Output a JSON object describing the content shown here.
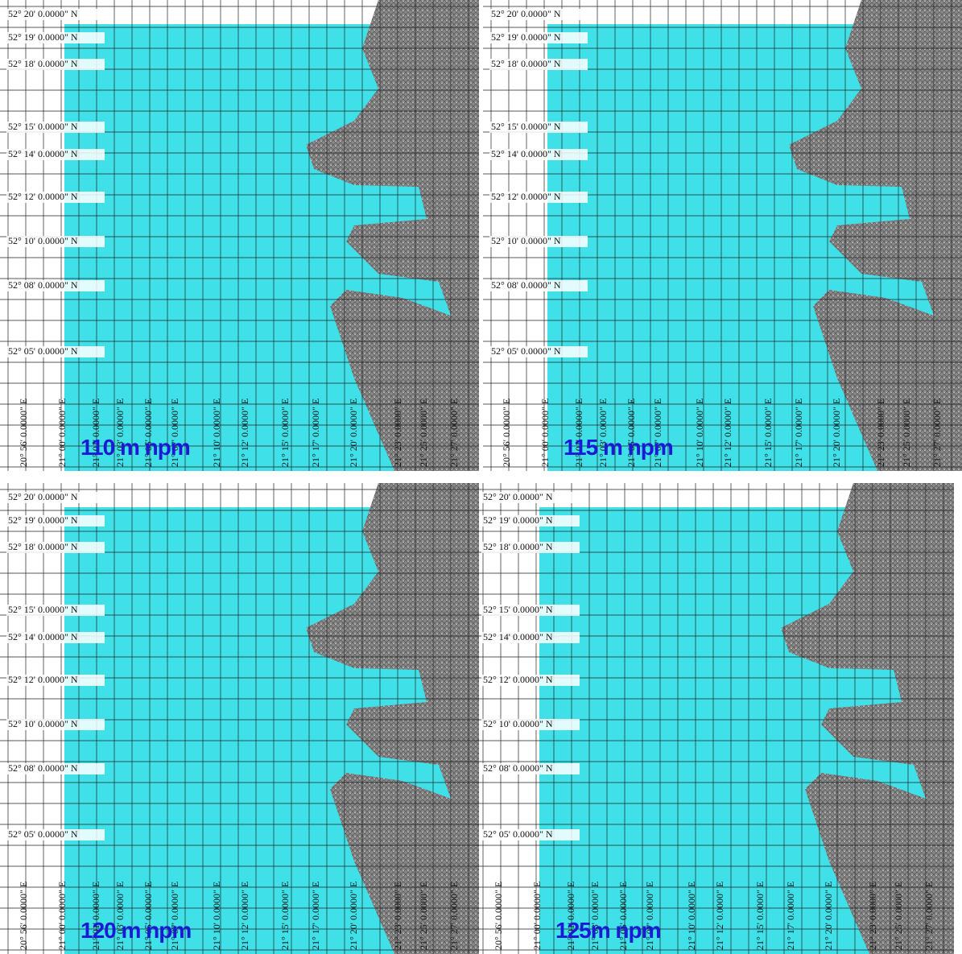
{
  "panels": [
    {
      "label": "110 m npm"
    },
    {
      "label": "115 m npm"
    },
    {
      "label": "120 m npm"
    },
    {
      "label": "125m npm"
    }
  ],
  "lat_labels": [
    "52° 20' 0.0000\" N",
    "52° 19' 0.0000\" N",
    "52° 18' 0.0000\" N",
    "52° 15' 0.0000\" N",
    "52° 14' 0.0000\" N",
    "52° 12' 0.0000\" N",
    "52° 10' 0.0000\" N",
    "52° 08' 0.0000\" N",
    "52° 05' 0.0000\" N"
  ],
  "lon_labels": [
    "20° 56' 0.0000\" E",
    "21° 00' 0.0000\" E",
    "21° 01' 0.0000\" E",
    "21° 03' 0.0000\" E",
    "21° 05' 0.0000\" E",
    "21° 07' 0.0000\" E",
    "21° 10' 0.0000\" E",
    "21° 12' 0.0000\" E",
    "21° 15' 0.0000\" E",
    "21° 17' 0.0000\" E",
    "21° 20' 0.0000\" E",
    "21° 23' 0.0000\" E",
    "21° 25' 0.0000\" E",
    "21° 27' 0.0000\" E"
  ]
}
